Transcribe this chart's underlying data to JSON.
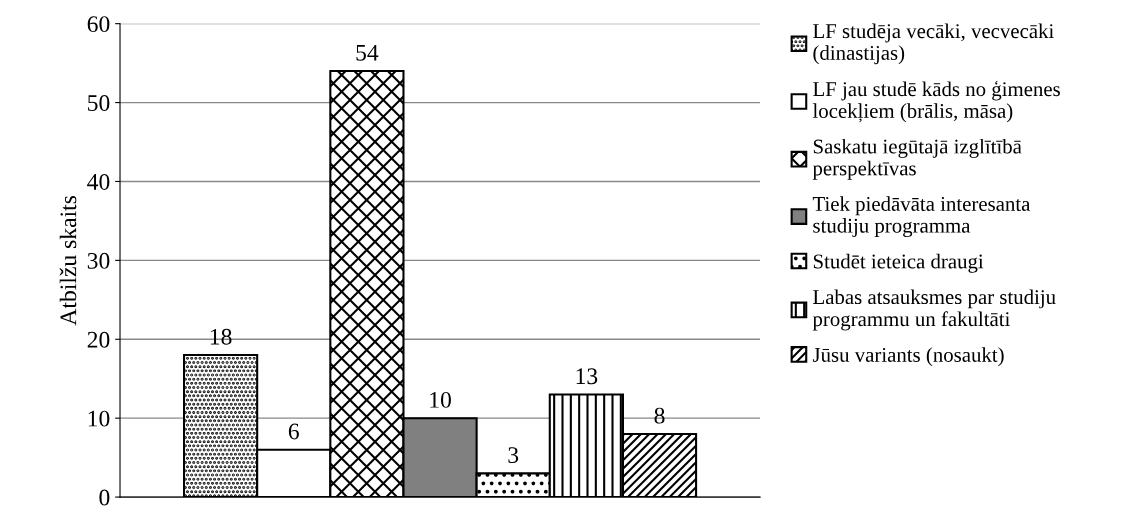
{
  "chart_data": {
    "type": "bar",
    "ylabel": "Atbilžu skaits",
    "categories": [
      null
    ],
    "series": [
      {
        "name": "LF studēja vecāki, vecvecāki (dinastijas)",
        "color": "#000000",
        "values": [
          18
        ]
      },
      {
        "name": "LF jau studē kāds no ģimenes locekļiem (brālis, māsa)",
        "color": "#ffffff",
        "values": [
          6
        ]
      },
      {
        "name": "Saskatu iegūtajā izglītībā perspektīvas",
        "color": "#000000",
        "values": [
          54
        ]
      },
      {
        "name": "Tiek piedāvāta interesanta studiju programma",
        "color": "#808080",
        "values": [
          10
        ]
      },
      {
        "name": "Studēt ieteica draugi",
        "color": "#000000",
        "values": [
          3
        ]
      },
      {
        "name": "Labas atsauksmes par studiju programmu un fakultāti",
        "color": "#000000",
        "values": [
          13
        ]
      },
      {
        "name": "Jūsu variants (nosaukt)",
        "color": "#000000",
        "values": [
          8
        ]
      }
    ],
    "ylim": [
      0,
      60
    ],
    "yticks": [
      0,
      10,
      20,
      30,
      40,
      50,
      60
    ],
    "grid": "y",
    "legend": "right",
    "data_labels": true
  }
}
